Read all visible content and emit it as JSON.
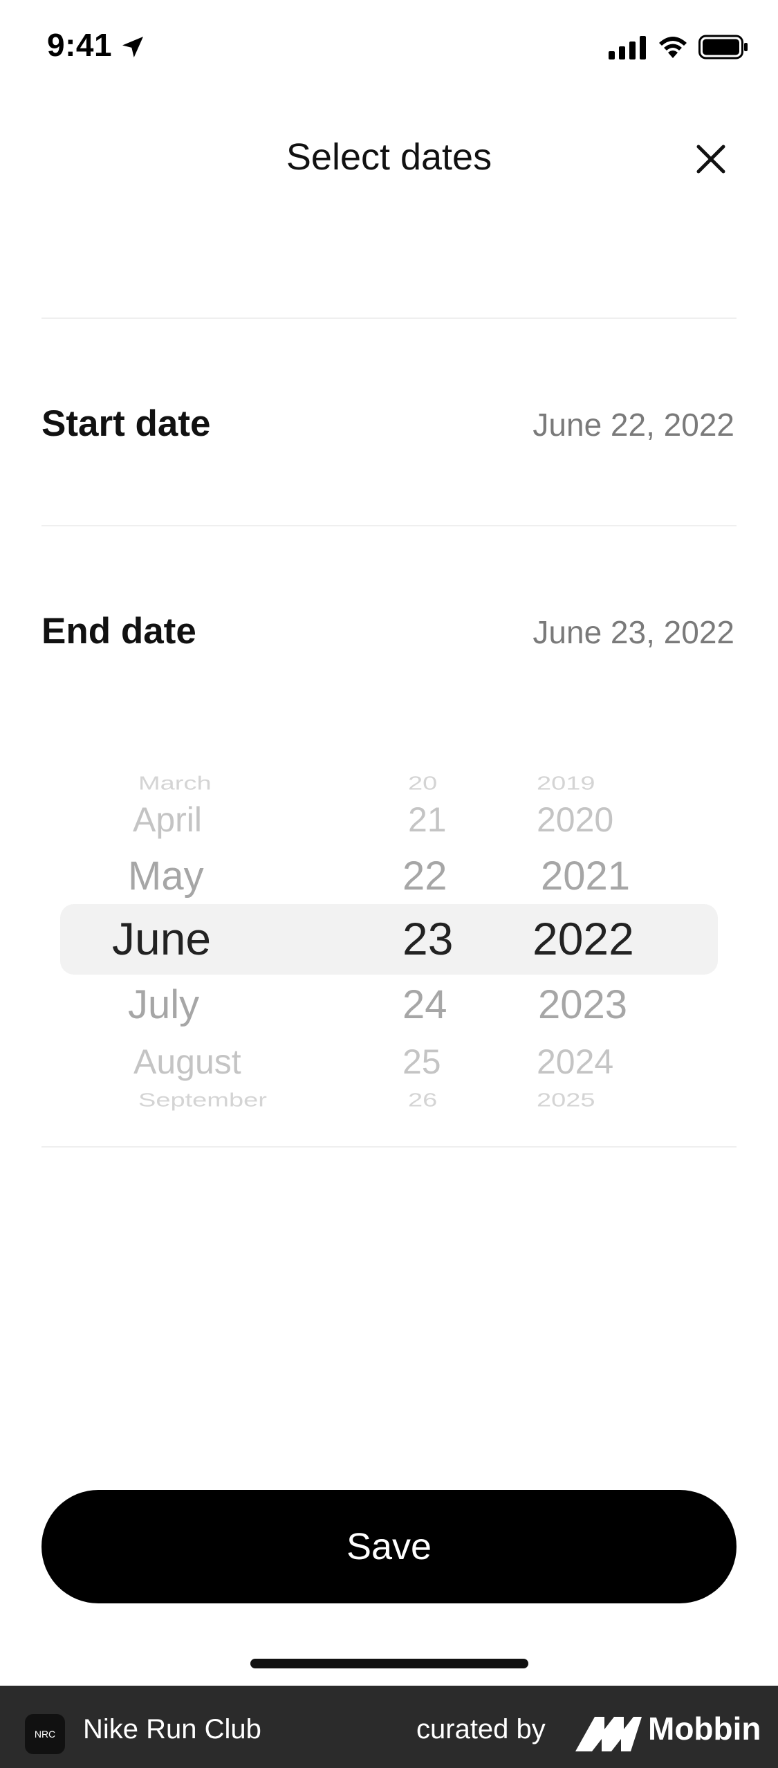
{
  "status_bar": {
    "time": "9:41",
    "icons": [
      "location-arrow-icon",
      "signal-icon",
      "wifi-icon",
      "battery-icon"
    ]
  },
  "header": {
    "title": "Select dates",
    "close_icon": "close-icon"
  },
  "rows": [
    {
      "label": "Start date",
      "value": "June 22, 2022"
    },
    {
      "label": "End date",
      "value": "June 23, 2022"
    }
  ],
  "picker": {
    "months": [
      "March",
      "April",
      "May",
      "June",
      "July",
      "August",
      "September"
    ],
    "days": [
      "20",
      "21",
      "22",
      "23",
      "24",
      "25",
      "26"
    ],
    "years": [
      "2019",
      "2020",
      "2021",
      "2022",
      "2023",
      "2024",
      "2025"
    ],
    "selected": {
      "month": "June",
      "day": "23",
      "year": "2022"
    }
  },
  "save_button": {
    "label": "Save"
  },
  "footer": {
    "app_icon_text": "NRC",
    "app_name": "Nike Run Club",
    "curated_by": "curated by",
    "brand": "Mobbin"
  },
  "colors": {
    "background": "#ffffff",
    "primary_button": "#000000",
    "secondary_text": "#7a7a7a",
    "footer_bg": "#2b2b2b"
  }
}
